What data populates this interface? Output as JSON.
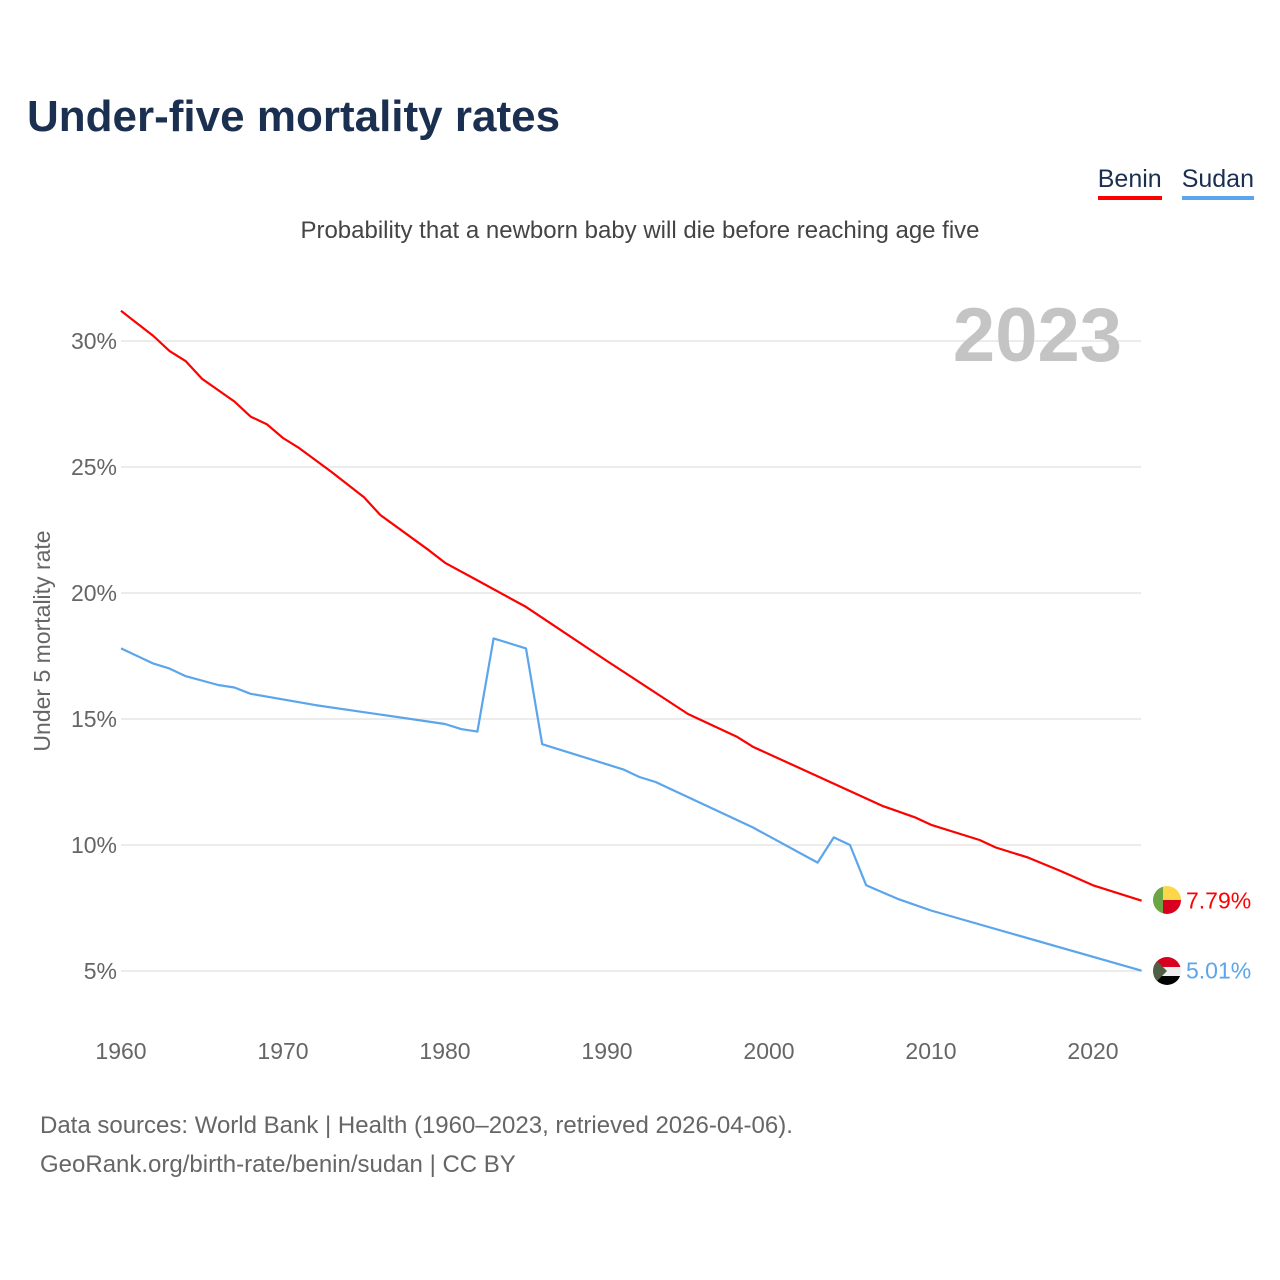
{
  "title": "Under-five mortality rates",
  "subtitle": "Probability that a newborn baby will die before reaching age five",
  "legend": [
    {
      "name": "Benin",
      "color": "#ff0000"
    },
    {
      "name": "Sudan",
      "color": "#5aa5ec"
    }
  ],
  "year_label": "2023",
  "source_line1": "Data sources: World Bank | Health (1960–2023, retrieved 2026-04-06).",
  "source_line2": "GeoRank.org/birth-rate/benin/sudan | CC BY",
  "chart_data": {
    "type": "line",
    "title": "Under-five mortality rates",
    "xlabel": "",
    "ylabel": "Under 5 mortality rate",
    "xlim": [
      1960,
      2023
    ],
    "ylim": [
      3,
      32
    ],
    "x_ticks": [
      1960,
      1970,
      1980,
      1990,
      2000,
      2010,
      2020
    ],
    "y_ticks": [
      5,
      10,
      15,
      20,
      25,
      30
    ],
    "y_tick_labels": [
      "5%",
      "10%",
      "15%",
      "20%",
      "25%",
      "30%"
    ],
    "grid": true,
    "legend_position": "top-right",
    "series": [
      {
        "name": "Benin",
        "color": "#ff0000",
        "end_label": "7.79%",
        "x": [
          1960,
          1962,
          1963,
          1964,
          1965,
          1967,
          1968,
          1969,
          1970,
          1971,
          1973,
          1975,
          1976,
          1979,
          1980,
          1982,
          1985,
          1990,
          1995,
          1998,
          1999,
          2007,
          2009,
          2010,
          2013,
          2014,
          2016,
          2018,
          2020,
          2023
        ],
        "y": [
          31.2,
          30.2,
          29.6,
          29.2,
          28.5,
          27.6,
          27.0,
          26.7,
          26.15,
          25.75,
          24.8,
          23.8,
          23.1,
          21.7,
          21.2,
          20.5,
          19.45,
          17.3,
          15.2,
          14.3,
          13.9,
          11.55,
          11.1,
          10.8,
          10.2,
          9.9,
          9.5,
          8.97,
          8.4,
          7.79
        ]
      },
      {
        "name": "Sudan",
        "color": "#5aa5ec",
        "end_label": "5.01%",
        "x": [
          1960,
          1962,
          1963,
          1964,
          1966,
          1967,
          1968,
          1972,
          1980,
          1981,
          1982,
          1983,
          1985,
          1986,
          1991,
          1992,
          1993,
          1999,
          2000,
          2003,
          2004,
          2005,
          2006,
          2008,
          2010,
          2023
        ],
        "y": [
          17.8,
          17.2,
          17.0,
          16.7,
          16.35,
          16.25,
          16.0,
          15.55,
          14.8,
          14.6,
          14.5,
          18.2,
          17.8,
          14.0,
          13.0,
          12.7,
          12.5,
          10.7,
          10.35,
          9.3,
          10.3,
          10.0,
          8.4,
          7.85,
          7.4,
          5.01
        ]
      }
    ]
  }
}
